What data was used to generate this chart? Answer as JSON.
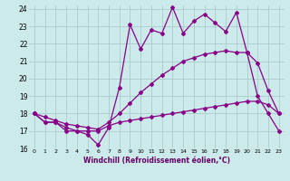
{
  "xlabel": "Windchill (Refroidissement éolien,°C)",
  "bg_color": "#cceaea",
  "grid_color": "#aacccc",
  "line_color": "#880088",
  "xlim": [
    -0.5,
    23.5
  ],
  "ylim": [
    16,
    24.2
  ],
  "yticks": [
    16,
    17,
    18,
    19,
    20,
    21,
    22,
    23,
    24
  ],
  "xticks": [
    0,
    1,
    2,
    3,
    4,
    5,
    6,
    7,
    8,
    9,
    10,
    11,
    12,
    13,
    14,
    15,
    16,
    17,
    18,
    19,
    20,
    21,
    22,
    23
  ],
  "line1_x": [
    0,
    1,
    2,
    3,
    4,
    5,
    6,
    7,
    8,
    9,
    10,
    11,
    12,
    13,
    14,
    15,
    16,
    17,
    18,
    19,
    20,
    21,
    22,
    23
  ],
  "line1_y": [
    18.0,
    17.5,
    17.5,
    17.0,
    17.0,
    16.8,
    16.2,
    17.2,
    19.5,
    23.1,
    21.7,
    22.8,
    22.6,
    24.1,
    22.6,
    23.3,
    23.7,
    23.2,
    22.7,
    23.8,
    21.5,
    20.9,
    19.3,
    18.0
  ],
  "line2_x": [
    0,
    1,
    2,
    3,
    4,
    5,
    6,
    7,
    8,
    9,
    10,
    11,
    12,
    13,
    14,
    15,
    16,
    17,
    18,
    19,
    20,
    21,
    22,
    23
  ],
  "line2_y": [
    18.0,
    17.8,
    17.6,
    17.4,
    17.3,
    17.2,
    17.1,
    17.5,
    18.0,
    18.6,
    19.2,
    19.7,
    20.2,
    20.6,
    21.0,
    21.2,
    21.4,
    21.5,
    21.6,
    21.5,
    21.5,
    19.0,
    18.0,
    17.0
  ],
  "line3_x": [
    0,
    1,
    2,
    3,
    4,
    5,
    6,
    7,
    8,
    9,
    10,
    11,
    12,
    13,
    14,
    15,
    16,
    17,
    18,
    19,
    20,
    21,
    22,
    23
  ],
  "line3_y": [
    18.0,
    17.5,
    17.5,
    17.2,
    17.0,
    17.0,
    17.0,
    17.3,
    17.5,
    17.6,
    17.7,
    17.8,
    17.9,
    18.0,
    18.1,
    18.2,
    18.3,
    18.4,
    18.5,
    18.6,
    18.7,
    18.7,
    18.5,
    18.0
  ]
}
